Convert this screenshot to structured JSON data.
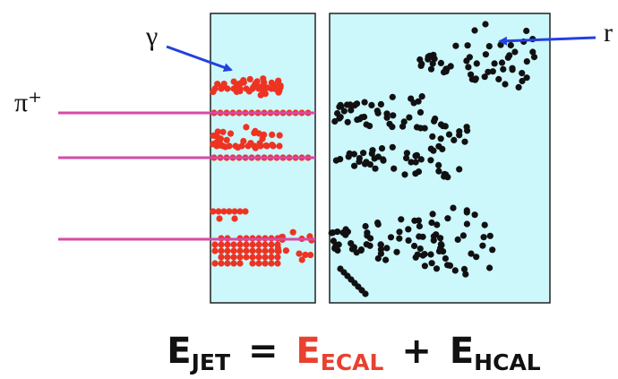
{
  "labels": {
    "photon": "γ",
    "pion": "π⁺",
    "neutron": "r"
  },
  "equation": {
    "parts": [
      "E",
      "JET",
      "=",
      "E",
      "ECAL",
      "+",
      "E",
      "HCAL"
    ]
  }
}
